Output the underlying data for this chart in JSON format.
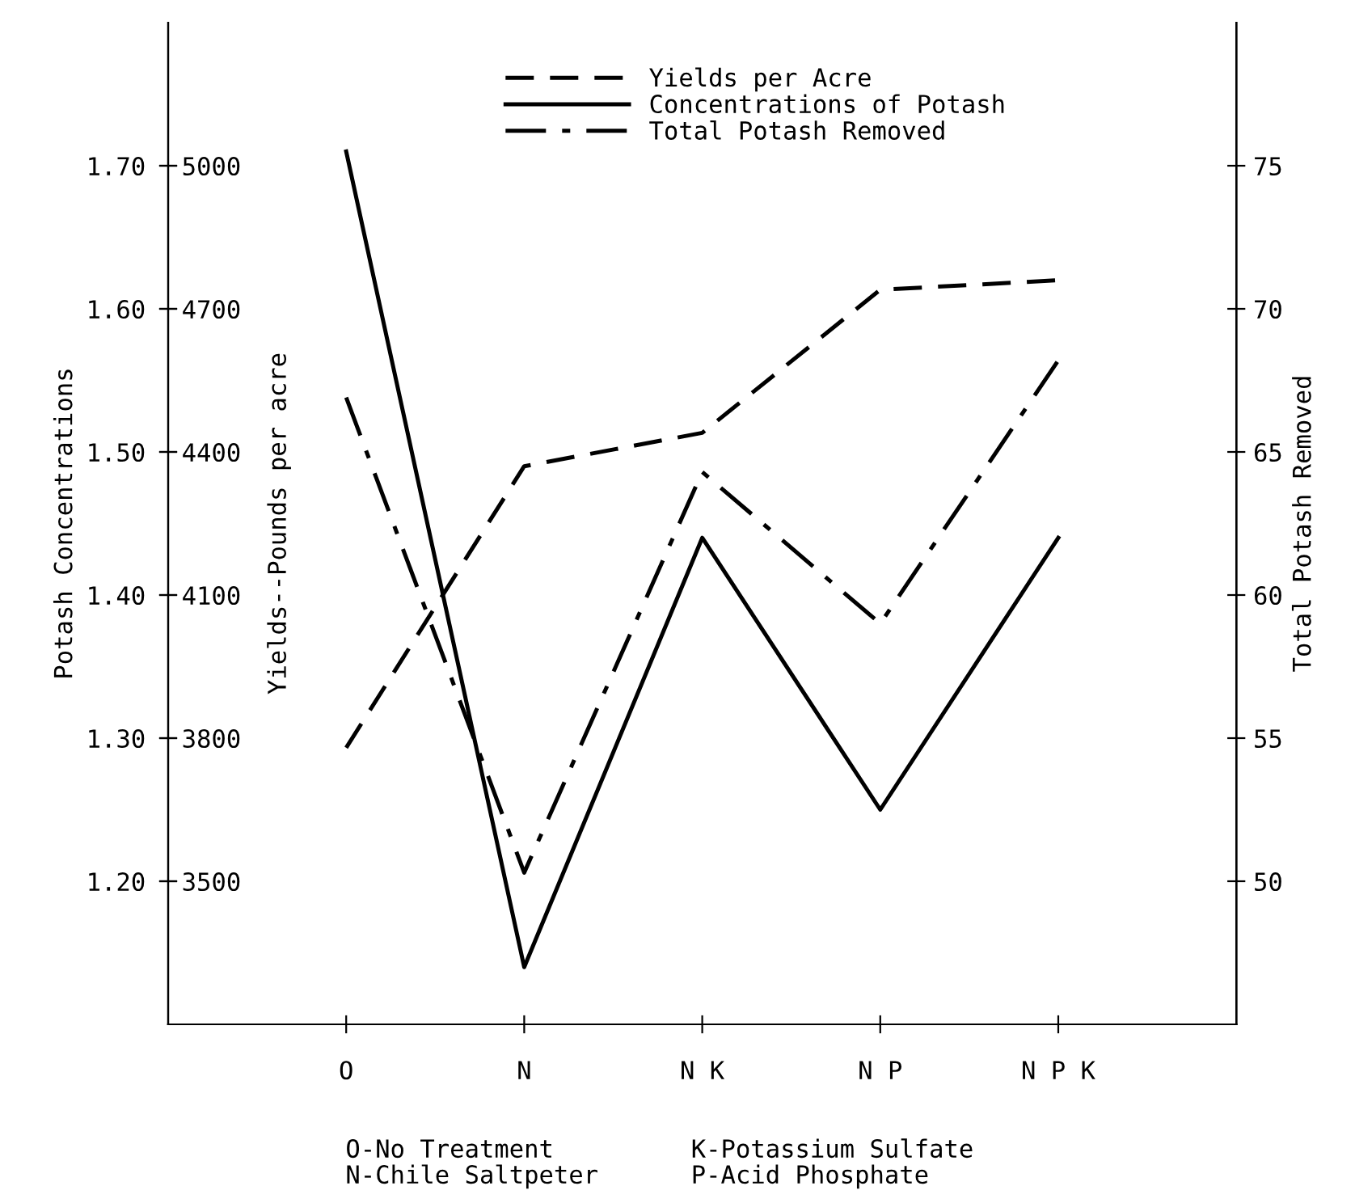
{
  "chart_data": {
    "type": "line",
    "categories": [
      "O",
      "N",
      "N K",
      "N P",
      "N P K"
    ],
    "series": [
      {
        "name": "Yields per Acre",
        "color": "#000000",
        "line_style": "dashed",
        "axis": "y3",
        "values": [
          3780,
          4370,
          4440,
          4740,
          4760
        ]
      },
      {
        "name": "Concentrations of Potash",
        "color": "#000000",
        "line_style": "solid",
        "values": [
          1.71,
          1.14,
          1.44,
          1.25,
          1.44
        ]
      },
      {
        "name": "Total Potash Removed",
        "color": "#000000",
        "line_style": "dashdot",
        "axis": "y2",
        "values": [
          66.9,
          50.3,
          64.3,
          59.0,
          68.2
        ]
      }
    ],
    "ylabel": "Potash Concentrations",
    "y3label": "Yields--Pounds per acre",
    "y2label": "Total Potash Removed",
    "ylim": [
      1.1,
      1.8
    ],
    "yticks": [
      {
        "value": 1.2,
        "label": "1.20"
      },
      {
        "value": 1.3,
        "label": "1.30"
      },
      {
        "value": 1.4,
        "label": "1.40"
      },
      {
        "value": 1.5,
        "label": "1.50"
      },
      {
        "value": 1.6,
        "label": "1.60"
      },
      {
        "value": 1.7,
        "label": "1.70"
      }
    ],
    "y3lim": [
      3200,
      5300
    ],
    "y3ticks": [
      3500,
      3800,
      4100,
      4400,
      4700,
      5000
    ],
    "y2lim": [
      45,
      80
    ],
    "y2ticks": [
      50,
      55,
      60,
      65,
      70,
      75
    ],
    "legend": "top",
    "grid": false,
    "marker": "none",
    "annotations": [
      "O-No Treatment\nN-Chile Saltpeter",
      "K-Potassium Sulfate\nP-Acid Phosphate"
    ]
  }
}
